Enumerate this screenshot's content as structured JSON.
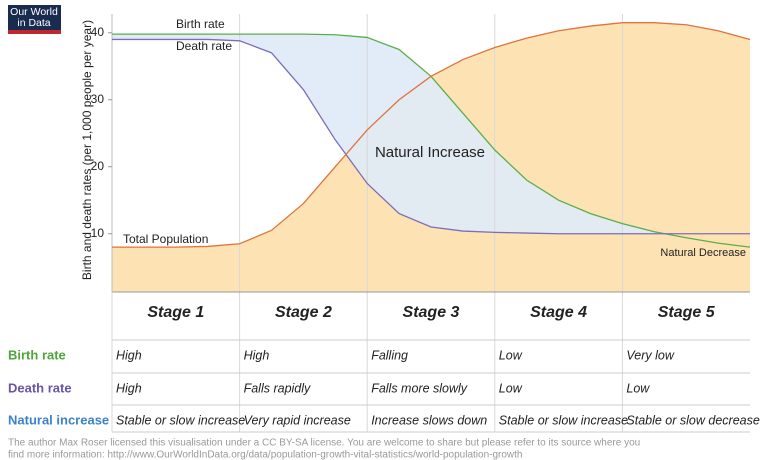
{
  "logo": [
    "Our World",
    "in Data"
  ],
  "chart_data": {
    "type": "line",
    "y_label": "Birth and death rates (per 1,000 people per year)",
    "annotations": [
      "Birth rate",
      "Death rate",
      "Total Population",
      "Natural Increase",
      "Natural Decrease"
    ],
    "x": [
      0,
      0.25,
      0.5,
      0.75,
      1,
      1.25,
      1.5,
      1.75,
      2,
      2.25,
      2.5,
      2.75,
      3,
      3.25,
      3.5,
      3.75,
      4,
      4.25,
      4.5,
      4.75,
      5
    ],
    "xlim": [
      0,
      5
    ],
    "xticks": [
      {
        "value": 0.5,
        "label": "Stage 1"
      },
      {
        "value": 1.5,
        "label": "Stage 2"
      },
      {
        "value": 2.5,
        "label": "Stage 3"
      },
      {
        "value": 3.5,
        "label": "Stage 4"
      },
      {
        "value": 4.5,
        "label": "Stage 5"
      }
    ],
    "ylim": [
      1.3,
      42.8
    ],
    "yticks": [
      10,
      20,
      30,
      40
    ],
    "series": [
      {
        "name": "Birth rate",
        "color": "#5cae4a",
        "values": [
          39.8,
          39.8,
          39.8,
          39.8,
          39.8,
          39.8,
          39.8,
          39.7,
          39.3,
          37.5,
          33.5,
          28,
          22.5,
          18,
          15,
          13,
          11.5,
          10.3,
          9.4,
          8.6,
          8
        ]
      },
      {
        "name": "Death rate",
        "color": "#7d6db8",
        "values": [
          39,
          39,
          39,
          39,
          38.8,
          37,
          31.5,
          24,
          17.5,
          13,
          11,
          10.4,
          10.2,
          10.1,
          10,
          10,
          10,
          10,
          10,
          10,
          10
        ]
      },
      {
        "name": "Total Population",
        "color": "#e0733a",
        "values": [
          8,
          8,
          8,
          8.1,
          8.5,
          10.5,
          14.5,
          20,
          25.5,
          30,
          33.5,
          36,
          37.8,
          39.2,
          40.3,
          41,
          41.5,
          41.5,
          41.2,
          40.3,
          39
        ]
      }
    ]
  },
  "table": {
    "rows": [
      {
        "label": "Birth rate",
        "color": "#4fa53b",
        "cells": [
          "High",
          "High",
          "Falling",
          "Low",
          "Very low"
        ]
      },
      {
        "label": "Death rate",
        "color": "#6a54a8",
        "cells": [
          "High",
          "Falls rapidly",
          "Falls more slowly",
          "Low",
          "Low"
        ]
      },
      {
        "label": "Natural increase",
        "color": "#3c82c8",
        "cells": [
          "Stable or slow increase",
          "Very rapid increase",
          "Increase slows down",
          "Stable or slow increase",
          "Stable or slow decrease"
        ]
      }
    ]
  },
  "footer": [
    "The author Max Roser licensed this visualisation under a CC BY-SA license. You are welcome to share but please refer to its source where you",
    "find more information: http://www.OurWorldInData.org/data/population-growth-vital-statistics/world-population-growth"
  ]
}
